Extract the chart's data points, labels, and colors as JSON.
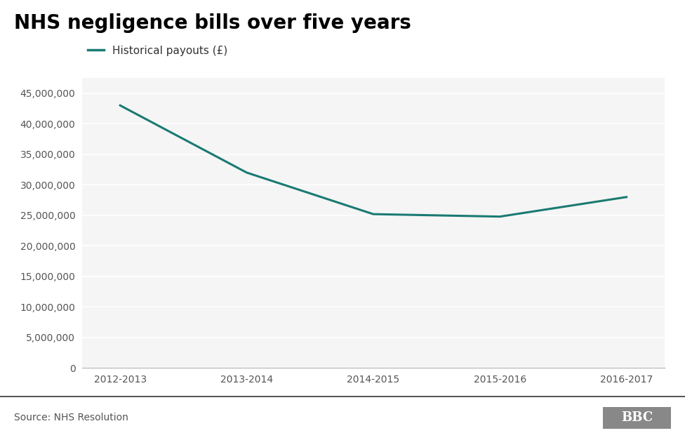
{
  "title": "NHS negligence bills over five years",
  "legend_label": "Historical payouts (£)",
  "source": "Source: NHS Resolution",
  "bbc_text": "BBC",
  "x_labels": [
    "2012-2013",
    "2013-2014",
    "2014-2015",
    "2015-2016",
    "2016-2017"
  ],
  "y_values": [
    43000000,
    32000000,
    25200000,
    24800000,
    28000000
  ],
  "line_color": "#1a7a72",
  "background_color": "#ffffff",
  "plot_bg_color": "#f5f5f5",
  "grid_color": "#ffffff",
  "ylim": [
    0,
    47500000
  ],
  "ytick_step": 5000000,
  "title_fontsize": 20,
  "legend_fontsize": 11,
  "tick_fontsize": 10,
  "source_fontsize": 10,
  "line_width": 2.2
}
